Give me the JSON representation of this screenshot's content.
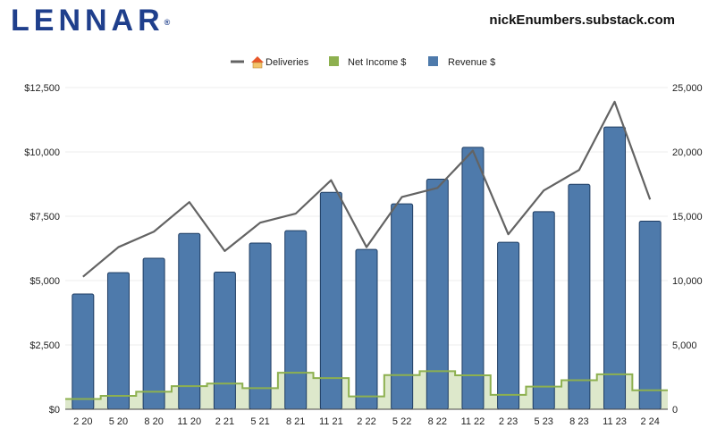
{
  "header": {
    "logo_text": "LENNAR",
    "logo_mark": "®",
    "byline": "nickEnumbers.substack.com"
  },
  "colors": {
    "revenue_fill": "#4e7aab",
    "revenue_stroke": "#1f3d63",
    "net_income_line": "#8db04f",
    "net_income_fill": "#dde8cb",
    "deliveries_line": "#636363",
    "grid": "#eeeeee",
    "logo": "#1f3f8c"
  },
  "chart_data": {
    "type": "bar",
    "categories": [
      "2 20",
      "5 20",
      "8 20",
      "11 20",
      "2 21",
      "5 21",
      "8 21",
      "11 21",
      "2 22",
      "5 22",
      "8 22",
      "11 22",
      "2 23",
      "5 23",
      "8 23",
      "11 23",
      "2 24"
    ],
    "legend": [
      {
        "label": "Deliveries",
        "icon": "house-icon"
      },
      {
        "label": "Net Income $",
        "icon": "green-square"
      },
      {
        "label": "Revenue $",
        "icon": "blue-square"
      }
    ],
    "legend_position": "top-center",
    "grid": true,
    "y_left": {
      "ticks": [
        "$0",
        "$2,500",
        "$5,000",
        "$7,500",
        "$10,000",
        "$12,500"
      ],
      "lim": [
        0,
        12500
      ]
    },
    "y_right": {
      "ticks": [
        "0",
        "5,000",
        "10,000",
        "15,000",
        "20,000",
        "25,000"
      ],
      "lim": [
        0,
        25000
      ]
    },
    "series": [
      {
        "name": "Revenue $",
        "type": "bar",
        "axis": "left",
        "values": [
          4480,
          5310,
          5870,
          6830,
          5330,
          6460,
          6940,
          8430,
          6210,
          7980,
          8940,
          10180,
          6490,
          7680,
          8740,
          10970,
          7310
        ]
      },
      {
        "name": "Net Income $",
        "type": "step-area",
        "axis": "left",
        "values": [
          400,
          520,
          680,
          900,
          1000,
          820,
          1420,
          1210,
          500,
          1330,
          1480,
          1320,
          560,
          880,
          1130,
          1360,
          740
        ]
      },
      {
        "name": "Deliveries",
        "type": "line",
        "axis": "right",
        "values": [
          10300,
          12600,
          13800,
          16100,
          12300,
          14500,
          15200,
          17800,
          12600,
          16500,
          17200,
          20100,
          13600,
          17000,
          18600,
          23900,
          16300
        ]
      }
    ]
  }
}
